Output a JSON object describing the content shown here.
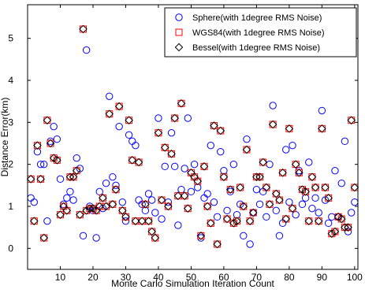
{
  "chart_data": {
    "type": "scatter",
    "title": "",
    "xlabel": "Monte Carlo Simulation Iteration Count",
    "ylabel": "Distance Error(km)",
    "xlim": [
      0,
      101
    ],
    "ylim": [
      -0.5,
      5.8
    ],
    "xticks": [
      10,
      20,
      30,
      40,
      50,
      60,
      70,
      80,
      90,
      100
    ],
    "yticks": [
      0,
      1,
      2,
      3,
      4,
      5
    ],
    "legend_position": "top-right",
    "grid": false,
    "series": [
      {
        "name": "Sphere(with 1degree RMS Noise)",
        "marker": "circle",
        "color": "#0000ff",
        "x": [
          1,
          2,
          3,
          4,
          5,
          6,
          7,
          8,
          9,
          10,
          11,
          12,
          13,
          14,
          15,
          16,
          17,
          18,
          19,
          20,
          21,
          22,
          23,
          24,
          25,
          26,
          27,
          28,
          29,
          30,
          31,
          32,
          33,
          34,
          35,
          36,
          37,
          38,
          39,
          40,
          41,
          42,
          43,
          44,
          45,
          46,
          47,
          48,
          49,
          50,
          51,
          52,
          53,
          54,
          55,
          56,
          57,
          58,
          59,
          60,
          61,
          62,
          63,
          64,
          65,
          66,
          67,
          68,
          69,
          70,
          71,
          72,
          73,
          74,
          75,
          76,
          77,
          78,
          79,
          80,
          81,
          82,
          83,
          84,
          85,
          86,
          87,
          88,
          89,
          90,
          91,
          92,
          93,
          94,
          95,
          96,
          97,
          98,
          99,
          100
        ],
        "y": [
          1.2,
          1.1,
          2.3,
          2.0,
          2.0,
          0.65,
          2.55,
          2.9,
          2.6,
          1.65,
          1.05,
          1.2,
          1.35,
          1.15,
          2.15,
          1.9,
          0.3,
          4.72,
          1.0,
          0.9,
          0.25,
          1.35,
          0.95,
          1.55,
          3.62,
          1.7,
          1.5,
          2.9,
          1.1,
          0.65,
          2.7,
          2.55,
          2.45,
          1.15,
          1.05,
          0.9,
          1.3,
          1.15,
          0.85,
          3.1,
          0.7,
          1.95,
          1.1,
          2.75,
          1.95,
          0.55,
          1.4,
          1.9,
          3.1,
          1.35,
          2.0,
          1.45,
          0.25,
          1.2,
          1.3,
          2.45,
          1.1,
          0.75,
          2.3,
          1.85,
          0.9,
          1.35,
          2.0,
          0.8,
          1.05,
          0.3,
          2.6,
          0.1,
          0.85,
          1.4,
          1.05,
          1.35,
          0.75,
          2.0,
          3.4,
          0.9,
          0.3,
          0.6,
          2.35,
          1.1,
          2.45,
          0.8,
          1.85,
          1.05,
          1.2,
          2.05,
          0.95,
          1.2,
          0.85,
          3.28,
          1.15,
          0.6,
          0.75,
          1.85,
          0.75,
          1.55,
          2.55,
          0.4,
          0.85,
          1.1
        ]
      },
      {
        "name": "WGS84(with 1degree RMS Noise)",
        "marker": "square",
        "color": "#ff0000",
        "x": [
          1,
          2,
          3,
          4,
          5,
          6,
          7,
          8,
          9,
          10,
          11,
          12,
          13,
          14,
          15,
          16,
          17,
          18,
          19,
          20,
          21,
          22,
          23,
          24,
          25,
          26,
          27,
          28,
          29,
          30,
          31,
          32,
          33,
          34,
          35,
          36,
          37,
          38,
          39,
          40,
          41,
          42,
          43,
          44,
          45,
          46,
          47,
          48,
          49,
          50,
          51,
          52,
          53,
          54,
          55,
          56,
          57,
          58,
          59,
          60,
          61,
          62,
          63,
          64,
          65,
          66,
          67,
          68,
          69,
          70,
          71,
          72,
          73,
          74,
          75,
          76,
          77,
          78,
          79,
          80,
          81,
          82,
          83,
          84,
          85,
          86,
          87,
          88,
          89,
          90,
          91,
          92,
          93,
          94,
          95,
          96,
          97,
          98,
          99,
          100
        ],
        "y": [
          1.65,
          0.65,
          2.45,
          1.65,
          0.25,
          3.05,
          2.5,
          2.15,
          2.1,
          0.8,
          1.0,
          0.9,
          1.7,
          1.7,
          1.85,
          0.8,
          5.22,
          0.9,
          0.95,
          0.95,
          0.9,
          1.0,
          1.2,
          1.0,
          3.2,
          1.05,
          1.4,
          3.38,
          0.9,
          0.75,
          3.05,
          2.1,
          0.65,
          2.05,
          0.65,
          1.05,
          0.65,
          0.4,
          0.25,
          2.75,
          1.15,
          2.4,
          1.0,
          2.25,
          3.1,
          1.25,
          3.45,
          1.25,
          0.95,
          1.8,
          1.7,
          1.6,
          0.3,
          1.95,
          1.0,
          0.6,
          2.92,
          0.1,
          2.8,
          1.7,
          0.7,
          1.4,
          0.6,
          0.65,
          1.45,
          1.0,
          2.35,
          0.65,
          0.85,
          1.7,
          1.7,
          2.05,
          1.45,
          1.05,
          2.95,
          1.3,
          1.15,
          1.8,
          0.7,
          2.85,
          0.95,
          2.0,
          1.8,
          1.4,
          1.35,
          0.65,
          1.7,
          1.45,
          0.65,
          2.85,
          1.45,
          1.2,
          0.35,
          0.4,
          0.75,
          0.7,
          0.5,
          0.5,
          3.05,
          1.45
        ]
      },
      {
        "name": "Bessel(with 1degree RMS Noise)",
        "marker": "diamond",
        "color": "#000000",
        "x": [
          1,
          2,
          3,
          4,
          5,
          6,
          7,
          8,
          9,
          10,
          11,
          12,
          13,
          14,
          15,
          16,
          17,
          18,
          19,
          20,
          21,
          22,
          23,
          24,
          25,
          26,
          27,
          28,
          29,
          30,
          31,
          32,
          33,
          34,
          35,
          36,
          37,
          38,
          39,
          40,
          41,
          42,
          43,
          44,
          45,
          46,
          47,
          48,
          49,
          50,
          51,
          52,
          53,
          54,
          55,
          56,
          57,
          58,
          59,
          60,
          61,
          62,
          63,
          64,
          65,
          66,
          67,
          68,
          69,
          70,
          71,
          72,
          73,
          74,
          75,
          76,
          77,
          78,
          79,
          80,
          81,
          82,
          83,
          84,
          85,
          86,
          87,
          88,
          89,
          90,
          91,
          92,
          93,
          94,
          95,
          96,
          97,
          98,
          99,
          100
        ],
        "y": [
          1.65,
          0.65,
          2.45,
          1.65,
          0.25,
          3.05,
          2.5,
          2.15,
          2.1,
          0.8,
          1.0,
          0.9,
          1.7,
          1.7,
          1.85,
          0.8,
          5.22,
          0.9,
          0.95,
          0.95,
          0.9,
          1.0,
          1.2,
          1.0,
          3.2,
          1.05,
          1.4,
          3.38,
          0.9,
          0.75,
          3.05,
          2.1,
          0.65,
          2.05,
          0.65,
          1.05,
          0.65,
          0.4,
          0.25,
          2.75,
          1.15,
          2.4,
          1.0,
          2.25,
          3.1,
          1.25,
          3.45,
          1.25,
          0.95,
          1.8,
          1.7,
          1.6,
          0.3,
          1.95,
          1.0,
          0.6,
          2.92,
          0.1,
          2.8,
          1.7,
          0.7,
          1.4,
          0.6,
          0.65,
          1.45,
          1.0,
          2.35,
          0.65,
          0.85,
          1.7,
          1.7,
          2.05,
          1.45,
          1.05,
          2.95,
          1.3,
          1.15,
          1.8,
          0.7,
          2.85,
          0.95,
          2.0,
          1.8,
          1.4,
          1.35,
          0.65,
          1.7,
          1.45,
          0.65,
          2.85,
          1.45,
          1.2,
          0.35,
          0.4,
          0.75,
          0.7,
          0.5,
          0.5,
          3.05,
          1.45
        ]
      }
    ]
  }
}
